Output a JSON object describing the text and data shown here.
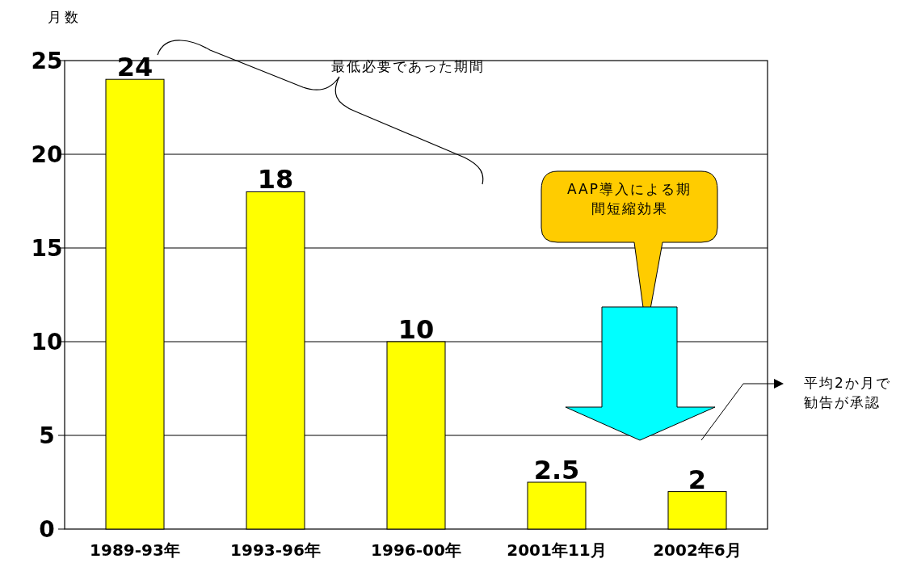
{
  "chart_data": {
    "type": "bar",
    "ylabel": "月数",
    "categories": [
      "1989-93年",
      "1993-96年",
      "1996-00年",
      "2001年11月",
      "2002年6月"
    ],
    "values": [
      24,
      18,
      10,
      2.5,
      2
    ],
    "color": "#ffff00",
    "ylim": [
      0,
      25
    ],
    "yticks": [
      0,
      5,
      10,
      15,
      20,
      25
    ],
    "grid": "y",
    "data_labels": true,
    "annotations": [
      "最低必要であった期間",
      "AAP導入による期間短縮効果",
      "平均2か月で勧告が承認"
    ]
  }
}
